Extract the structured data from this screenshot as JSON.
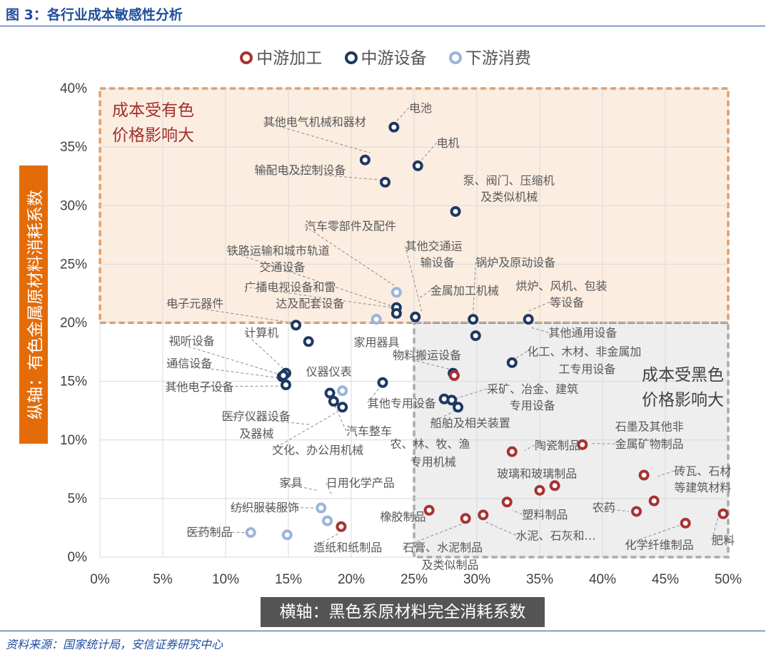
{
  "title": "图 3：各行业成本敏感性分析",
  "source": "资料来源：国家统计局，安信证券研究中心",
  "legend": [
    "中游加工",
    "中游设备",
    "下游消费"
  ],
  "zone_top_label": [
    "成本受有色",
    "价格影响大"
  ],
  "zone_bottom_label": [
    "成本受黑色",
    "价格影响大"
  ],
  "colors": {
    "中游加工": "#a83232",
    "中游设备": "#1f3864",
    "下游消费": "#9ab5da",
    "title": "#1f4e9c",
    "orange": "#e36c09",
    "grey": "#7f7f7f"
  },
  "chart_data": {
    "type": "scatter",
    "xlabel": "横轴：黑色系原材料完全消耗系数",
    "ylabel": "纵轴：有色金属原材料消耗系数",
    "xlim": [
      0,
      0.5
    ],
    "ylim": [
      0,
      0.4
    ],
    "x_ticks": [
      "0%",
      "5%",
      "10%",
      "15%",
      "20%",
      "25%",
      "30%",
      "35%",
      "40%",
      "45%",
      "50%"
    ],
    "y_ticks": [
      "0%",
      "5%",
      "10%",
      "15%",
      "20%",
      "25%",
      "30%",
      "35%",
      "40%"
    ],
    "points": [
      {
        "name": "电池",
        "series": "中游设备",
        "x": 0.234,
        "y": 0.367
      },
      {
        "name": "其他电气机械和器材",
        "series": "中游设备",
        "x": 0.211,
        "y": 0.339
      },
      {
        "name": "电机",
        "series": "中游设备",
        "x": 0.253,
        "y": 0.334
      },
      {
        "name": "输配电及控制设备",
        "series": "中游设备",
        "x": 0.227,
        "y": 0.32
      },
      {
        "name": "泵、阀门、压缩机及类似机械",
        "series": "中游设备",
        "x": 0.283,
        "y": 0.295
      },
      {
        "name": "汽车零部件及配件",
        "series": "中游设备",
        "x": 0.236,
        "y": 0.213
      },
      {
        "name": "铁路运输和城市轨道交通设备",
        "series": "中游设备",
        "x": 0.236,
        "y": 0.208
      },
      {
        "name": "其他交通运输设备",
        "series": "中游设备",
        "x": 0.251,
        "y": 0.205
      },
      {
        "name": "锅炉及原动设备",
        "series": "中游设备",
        "x": 0.297,
        "y": 0.203
      },
      {
        "name": "金属加工机械",
        "series": "中游设备",
        "x": 0.299,
        "y": 0.189
      },
      {
        "name": "烘炉、风机、包装等设备",
        "series": "中游设备",
        "x": 0.341,
        "y": 0.203
      },
      {
        "name": "电子元器件",
        "series": "中游设备",
        "x": 0.156,
        "y": 0.198
      },
      {
        "name": "广播电视设备和雷达及配套设备",
        "series": "中游设备",
        "x": 0.166,
        "y": 0.184
      },
      {
        "name": "视听设备",
        "series": "中游设备",
        "x": 0.148,
        "y": 0.157
      },
      {
        "name": "通信设备",
        "series": "中游设备",
        "x": 0.145,
        "y": 0.154
      },
      {
        "name": "其他电子设备",
        "series": "中游设备",
        "x": 0.148,
        "y": 0.147
      },
      {
        "name": "计算机",
        "series": "中游设备",
        "x": 0.146,
        "y": 0.155
      },
      {
        "name": "仪器仪表",
        "series": "中游设备",
        "x": 0.225,
        "y": 0.149
      },
      {
        "name": "化工、木材、非金属加工专用设备",
        "series": "中游设备",
        "x": 0.328,
        "y": 0.166
      },
      {
        "name": "物料搬运设备",
        "series": "中游设备",
        "x": 0.281,
        "y": 0.157
      },
      {
        "name": "采矿、冶金、建筑专用设备",
        "series": "中游设备",
        "x": 0.274,
        "y": 0.135
      },
      {
        "name": "其他专用设备",
        "series": "中游设备",
        "x": 0.28,
        "y": 0.134
      },
      {
        "name": "船舶及相关装置",
        "series": "中游设备",
        "x": 0.285,
        "y": 0.128
      },
      {
        "name": "医疗仪器设备及器械",
        "series": "中游设备",
        "x": 0.183,
        "y": 0.14
      },
      {
        "name": "汽车整车",
        "series": "中游设备",
        "x": 0.186,
        "y": 0.133
      },
      {
        "name": "文化、办公用机械",
        "series": "中游设备",
        "x": 0.193,
        "y": 0.128
      },
      {
        "name": "农、林、牧、渔专用机械",
        "series": "中游设备",
        "x": 0.282,
        "y": 0.155
      },
      {
        "name": "家用器具",
        "series": "下游消费",
        "x": 0.22,
        "y": 0.203
      },
      {
        "name": "汽车零部件及配件",
        "series": "下游消费",
        "x": 0.236,
        "y": 0.226
      },
      {
        "name": "文化、办公用机械",
        "series": "下游消费",
        "x": 0.193,
        "y": 0.142
      },
      {
        "name": "家具",
        "series": "下游消费",
        "x": 0.176,
        "y": 0.042
      },
      {
        "name": "日用化学产品",
        "series": "下游消费",
        "x": 0.181,
        "y": 0.031
      },
      {
        "name": "纺织服装服饰",
        "series": "下游消费",
        "x": 0.149,
        "y": 0.019
      },
      {
        "name": "医药制品",
        "series": "下游消费",
        "x": 0.12,
        "y": 0.021
      },
      {
        "name": "物料搬运设备",
        "series": "中游加工",
        "x": 0.282,
        "y": 0.155
      },
      {
        "name": "造纸和纸制品",
        "series": "中游加工",
        "x": 0.192,
        "y": 0.026
      },
      {
        "name": "橡胶制品",
        "series": "中游加工",
        "x": 0.262,
        "y": 0.04
      },
      {
        "name": "石膏、水泥制品及类似制品",
        "series": "中游加工",
        "x": 0.291,
        "y": 0.033
      },
      {
        "name": "水泥、石灰和…",
        "series": "中游加工",
        "x": 0.305,
        "y": 0.036
      },
      {
        "name": "塑料制品",
        "series": "中游加工",
        "x": 0.324,
        "y": 0.047
      },
      {
        "name": "陶瓷制品",
        "series": "中游加工",
        "x": 0.328,
        "y": 0.09
      },
      {
        "name": "玻璃和玻璃制品",
        "series": "中游加工",
        "x": 0.35,
        "y": 0.057
      },
      {
        "name": "玻璃和玻璃制品",
        "series": "中游加工",
        "x": 0.362,
        "y": 0.061
      },
      {
        "name": "石墨及其他非金属矿物制品",
        "series": "中游加工",
        "x": 0.384,
        "y": 0.096
      },
      {
        "name": "农药",
        "series": "中游加工",
        "x": 0.427,
        "y": 0.039
      },
      {
        "name": "砖瓦、石材等建筑材料",
        "series": "中游加工",
        "x": 0.433,
        "y": 0.07
      },
      {
        "name": "砖瓦、石材等建筑材料",
        "series": "中游加工",
        "x": 0.441,
        "y": 0.048
      },
      {
        "name": "化学纤维制品",
        "series": "中游加工",
        "x": 0.466,
        "y": 0.029
      },
      {
        "name": "肥料",
        "series": "中游加工",
        "x": 0.496,
        "y": 0.037
      }
    ],
    "labels": [
      {
        "text": "电池",
        "x": 0.246,
        "y": 0.38,
        "lx": 0.236,
        "ly": 0.372
      },
      {
        "text": "其他电气机械和器材",
        "x": 0.13,
        "y": 0.368,
        "lx": 0.215,
        "ly": 0.345
      },
      {
        "text": "电机",
        "x": 0.268,
        "y": 0.35,
        "lx": 0.256,
        "ly": 0.339
      },
      {
        "text": "输配电及控制设备",
        "x": 0.123,
        "y": 0.327,
        "lx": 0.224,
        "ly": 0.322
      },
      {
        "text": "泵、阀门、压缩机",
        "x": 0.289,
        "y": 0.318
      },
      {
        "text": "及类似机械",
        "x": 0.303,
        "y": 0.304
      },
      {
        "text": "汽车零部件及配件",
        "x": 0.163,
        "y": 0.279,
        "lx": 0.234,
        "ly": 0.232
      },
      {
        "text": "铁路运输和城市轨道",
        "x": 0.101,
        "y": 0.258,
        "lx": 0.233,
        "ly": 0.214
      },
      {
        "text": "交通设备",
        "x": 0.127,
        "y": 0.244
      },
      {
        "text": "其他交通运",
        "x": 0.243,
        "y": 0.262,
        "lx": 0.256,
        "ly": 0.21
      },
      {
        "text": "输设备",
        "x": 0.255,
        "y": 0.248
      },
      {
        "text": "锅炉及原动设备",
        "x": 0.299,
        "y": 0.248,
        "lx": 0.297,
        "ly": 0.208
      },
      {
        "text": "烘炉、风机、包装",
        "x": 0.331,
        "y": 0.228
      },
      {
        "text": "等设备",
        "x": 0.358,
        "y": 0.214,
        "lx": 0.341,
        "ly": 0.21
      },
      {
        "text": "金属加工机械",
        "x": 0.263,
        "y": 0.224,
        "lx": 0.254,
        "ly": 0.221
      },
      {
        "text": "广播电视设备和雷",
        "x": 0.115,
        "y": 0.227,
        "lx": 0.232,
        "ly": 0.213
      },
      {
        "text": "达及配套设备",
        "x": 0.14,
        "y": 0.213
      },
      {
        "text": "电子元器件",
        "x": 0.053,
        "y": 0.213,
        "lx": 0.153,
        "ly": 0.2
      },
      {
        "text": "家用器具",
        "x": 0.202,
        "y": 0.18
      },
      {
        "text": "其他通用设备",
        "x": 0.357,
        "y": 0.188,
        "lx": 0.343,
        "ly": 0.196
      },
      {
        "text": "计算机",
        "x": 0.115,
        "y": 0.188,
        "lx": 0.148,
        "ly": 0.159
      },
      {
        "text": "视听设备",
        "x": 0.055,
        "y": 0.181,
        "lx": 0.143,
        "ly": 0.156
      },
      {
        "text": "通信设备",
        "x": 0.053,
        "y": 0.162,
        "lx": 0.142,
        "ly": 0.153
      },
      {
        "text": "其他电子设备",
        "x": 0.052,
        "y": 0.142,
        "lx": 0.145,
        "ly": 0.146
      },
      {
        "text": "仪器仪表",
        "x": 0.164,
        "y": 0.155
      },
      {
        "text": "物料搬运设备",
        "x": 0.233,
        "y": 0.169,
        "lx": 0.28,
        "ly": 0.16
      },
      {
        "text": "化工、木材、非金属加",
        "x": 0.34,
        "y": 0.172,
        "lx": 0.33,
        "ly": 0.169
      },
      {
        "text": "工专用设备",
        "x": 0.365,
        "y": 0.157
      },
      {
        "text": "采矿、冶金、建筑",
        "x": 0.308,
        "y": 0.14,
        "lx": 0.282,
        "ly": 0.135
      },
      {
        "text": "专用设备",
        "x": 0.326,
        "y": 0.126
      },
      {
        "text": "其他专用设备",
        "x": 0.213,
        "y": 0.128,
        "lx": 0.222,
        "ly": 0.144
      },
      {
        "text": "船舶及相关装置",
        "x": 0.263,
        "y": 0.111,
        "lx": 0.283,
        "ly": 0.125
      },
      {
        "text": "医疗仪器设备",
        "x": 0.097,
        "y": 0.117,
        "lx": 0.168,
        "ly": 0.113
      },
      {
        "text": "及器械",
        "x": 0.111,
        "y": 0.102
      },
      {
        "text": "汽车整车",
        "x": 0.196,
        "y": 0.104,
        "lx": 0.187,
        "ly": 0.129
      },
      {
        "text": "文化、办公用机械",
        "x": 0.137,
        "y": 0.088,
        "lx": 0.189,
        "ly": 0.124
      },
      {
        "text": "农、林、牧、渔",
        "x": 0.231,
        "y": 0.093
      },
      {
        "text": "专用机械",
        "x": 0.247,
        "y": 0.078
      },
      {
        "text": "陶瓷制品",
        "x": 0.346,
        "y": 0.092,
        "lx": 0.338,
        "ly": 0.091
      },
      {
        "text": "石墨及其他非",
        "x": 0.41,
        "y": 0.108
      },
      {
        "text": "金属矿物制品",
        "x": 0.41,
        "y": 0.093,
        "lx": 0.39,
        "ly": 0.097
      },
      {
        "text": "玻璃和玻璃制品",
        "x": 0.316,
        "y": 0.068
      },
      {
        "text": "砖瓦、石材",
        "x": 0.457,
        "y": 0.07,
        "lx": 0.444,
        "ly": 0.069
      },
      {
        "text": "等建筑材料",
        "x": 0.457,
        "y": 0.056
      },
      {
        "text": "家具",
        "x": 0.143,
        "y": 0.06,
        "lx": 0.173,
        "ly": 0.057
      },
      {
        "text": "日用化学产品",
        "x": 0.18,
        "y": 0.06,
        "lx": 0.184,
        "ly": 0.054
      },
      {
        "text": "纺织服装服饰",
        "x": 0.104,
        "y": 0.039,
        "lx": 0.173,
        "ly": 0.042
      },
      {
        "text": "医药制品",
        "x": 0.069,
        "y": 0.018,
        "lx": 0.115,
        "ly": 0.021
      },
      {
        "text": "塑料制品",
        "x": 0.336,
        "y": 0.033,
        "lx": 0.328,
        "ly": 0.04
      },
      {
        "text": "农药",
        "x": 0.392,
        "y": 0.039,
        "lx": 0.421,
        "ly": 0.039
      },
      {
        "text": "橡胶制品",
        "x": 0.223,
        "y": 0.031,
        "lx": 0.259,
        "ly": 0.036
      },
      {
        "text": "水泥、石灰和…",
        "x": 0.331,
        "y": 0.015,
        "lx": 0.307,
        "ly": 0.03
      },
      {
        "text": "造纸和纸制品",
        "x": 0.17,
        "y": 0.005,
        "lx": 0.19,
        "ly": 0.02
      },
      {
        "text": "石膏、水泥制品",
        "x": 0.241,
        "y": 0.005,
        "lx": 0.29,
        "ly": 0.029
      },
      {
        "text": "及类似制品",
        "x": 0.256,
        "y": -0.01
      },
      {
        "text": "化学纤维制品",
        "x": 0.418,
        "y": 0.007,
        "lx": 0.461,
        "ly": 0.027
      },
      {
        "text": "肥料",
        "x": 0.487,
        "y": 0.011,
        "lx": 0.492,
        "ly": 0.034
      }
    ],
    "grid": true,
    "legend_position": "top",
    "zones": [
      {
        "label": "成本受有色价格影响大",
        "x": [
          0,
          0.5
        ],
        "y": [
          0.2,
          0.4
        ],
        "color": "#e36c09"
      },
      {
        "label": "成本受黑色价格影响大",
        "x": [
          0.25,
          0.5
        ],
        "y": [
          0,
          0.2
        ],
        "color": "#7f7f7f"
      }
    ]
  }
}
